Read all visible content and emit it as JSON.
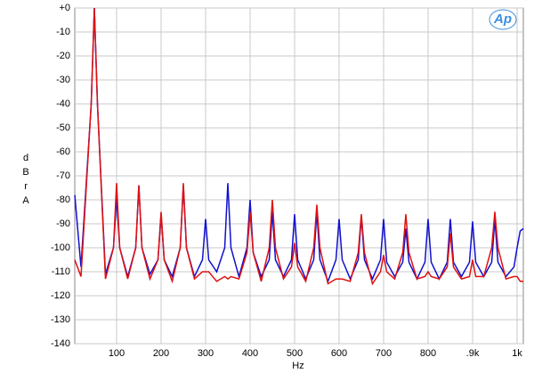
{
  "chart_data": {
    "type": "line",
    "logo": "Ap",
    "xlabel": "Hz",
    "ylabel": "dBr",
    "ylabel_unit": "A",
    "xlim": [
      6,
      1014
    ],
    "ylim": [
      -140,
      0
    ],
    "xticks": [
      100,
      200,
      300,
      400,
      500,
      600,
      700,
      800,
      {
        "value": 900,
        "label": ".9k"
      },
      {
        "value": 1000,
        "label": "1k"
      }
    ],
    "yticks": [
      {
        "value": 0,
        "label": "+0"
      },
      -10,
      -20,
      -30,
      -40,
      -50,
      -60,
      -70,
      -80,
      -90,
      -100,
      -110,
      -120,
      -130,
      -140
    ],
    "grid": true,
    "x": [
      6,
      20,
      43,
      50,
      57,
      75,
      93,
      100,
      107,
      125,
      143,
      150,
      157,
      175,
      193,
      200,
      207,
      225,
      243,
      250,
      257,
      275,
      293,
      300,
      307,
      325,
      343,
      350,
      357,
      375,
      393,
      400,
      407,
      425,
      443,
      450,
      457,
      475,
      493,
      500,
      507,
      525,
      543,
      550,
      557,
      575,
      593,
      600,
      607,
      625,
      643,
      650,
      657,
      675,
      693,
      700,
      707,
      725,
      743,
      750,
      757,
      775,
      793,
      800,
      807,
      825,
      843,
      850,
      857,
      875,
      893,
      900,
      907,
      925,
      943,
      950,
      957,
      975,
      993,
      1000,
      1007,
      1014
    ],
    "series": [
      {
        "color": "#1010d0",
        "values": [
          -78,
          -108,
          -40,
          0,
          -40,
          -111,
          -100,
          -79,
          -100,
          -112,
          -100,
          -74,
          -100,
          -111,
          -105,
          -86,
          -105,
          -112,
          -100,
          -74,
          -100,
          -112,
          -105,
          -88,
          -105,
          -110,
          -100,
          -73,
          -100,
          -112,
          -100,
          -80,
          -102,
          -112,
          -105,
          -85,
          -105,
          -112,
          -105,
          -86,
          -105,
          -113,
          -105,
          -85,
          -105,
          -114,
          -105,
          -88,
          -105,
          -113,
          -105,
          -87,
          -105,
          -113,
          -105,
          -88,
          -106,
          -112,
          -106,
          -92,
          -106,
          -113,
          -106,
          -88,
          -106,
          -113,
          -106,
          -88,
          -106,
          -112,
          -106,
          -89,
          -106,
          -112,
          -106,
          -88,
          -106,
          -112,
          -108,
          -100,
          -93,
          -92
        ]
      },
      {
        "color": "#e01010",
        "values": [
          -105,
          -112,
          -40,
          0,
          -40,
          -113,
          -100,
          -73,
          -100,
          -113,
          -100,
          -74,
          -100,
          -113,
          -105,
          -85,
          -105,
          -114,
          -100,
          -73,
          -100,
          -113,
          -110,
          -110,
          -110,
          -114,
          -112,
          -113,
          -112,
          -113,
          -102,
          -85,
          -102,
          -114,
          -100,
          -80,
          -100,
          -113,
          -108,
          -98,
          -108,
          -114,
          -100,
          -82,
          -100,
          -115,
          -113,
          -113,
          -113,
          -114,
          -102,
          -86,
          -102,
          -115,
          -110,
          -103,
          -110,
          -113,
          -102,
          -86,
          -102,
          -113,
          -112,
          -110,
          -112,
          -113,
          -108,
          -94,
          -108,
          -113,
          -112,
          -105,
          -112,
          -112,
          -100,
          -85,
          -100,
          -113,
          -112,
          -112,
          -114,
          -114
        ]
      }
    ]
  }
}
